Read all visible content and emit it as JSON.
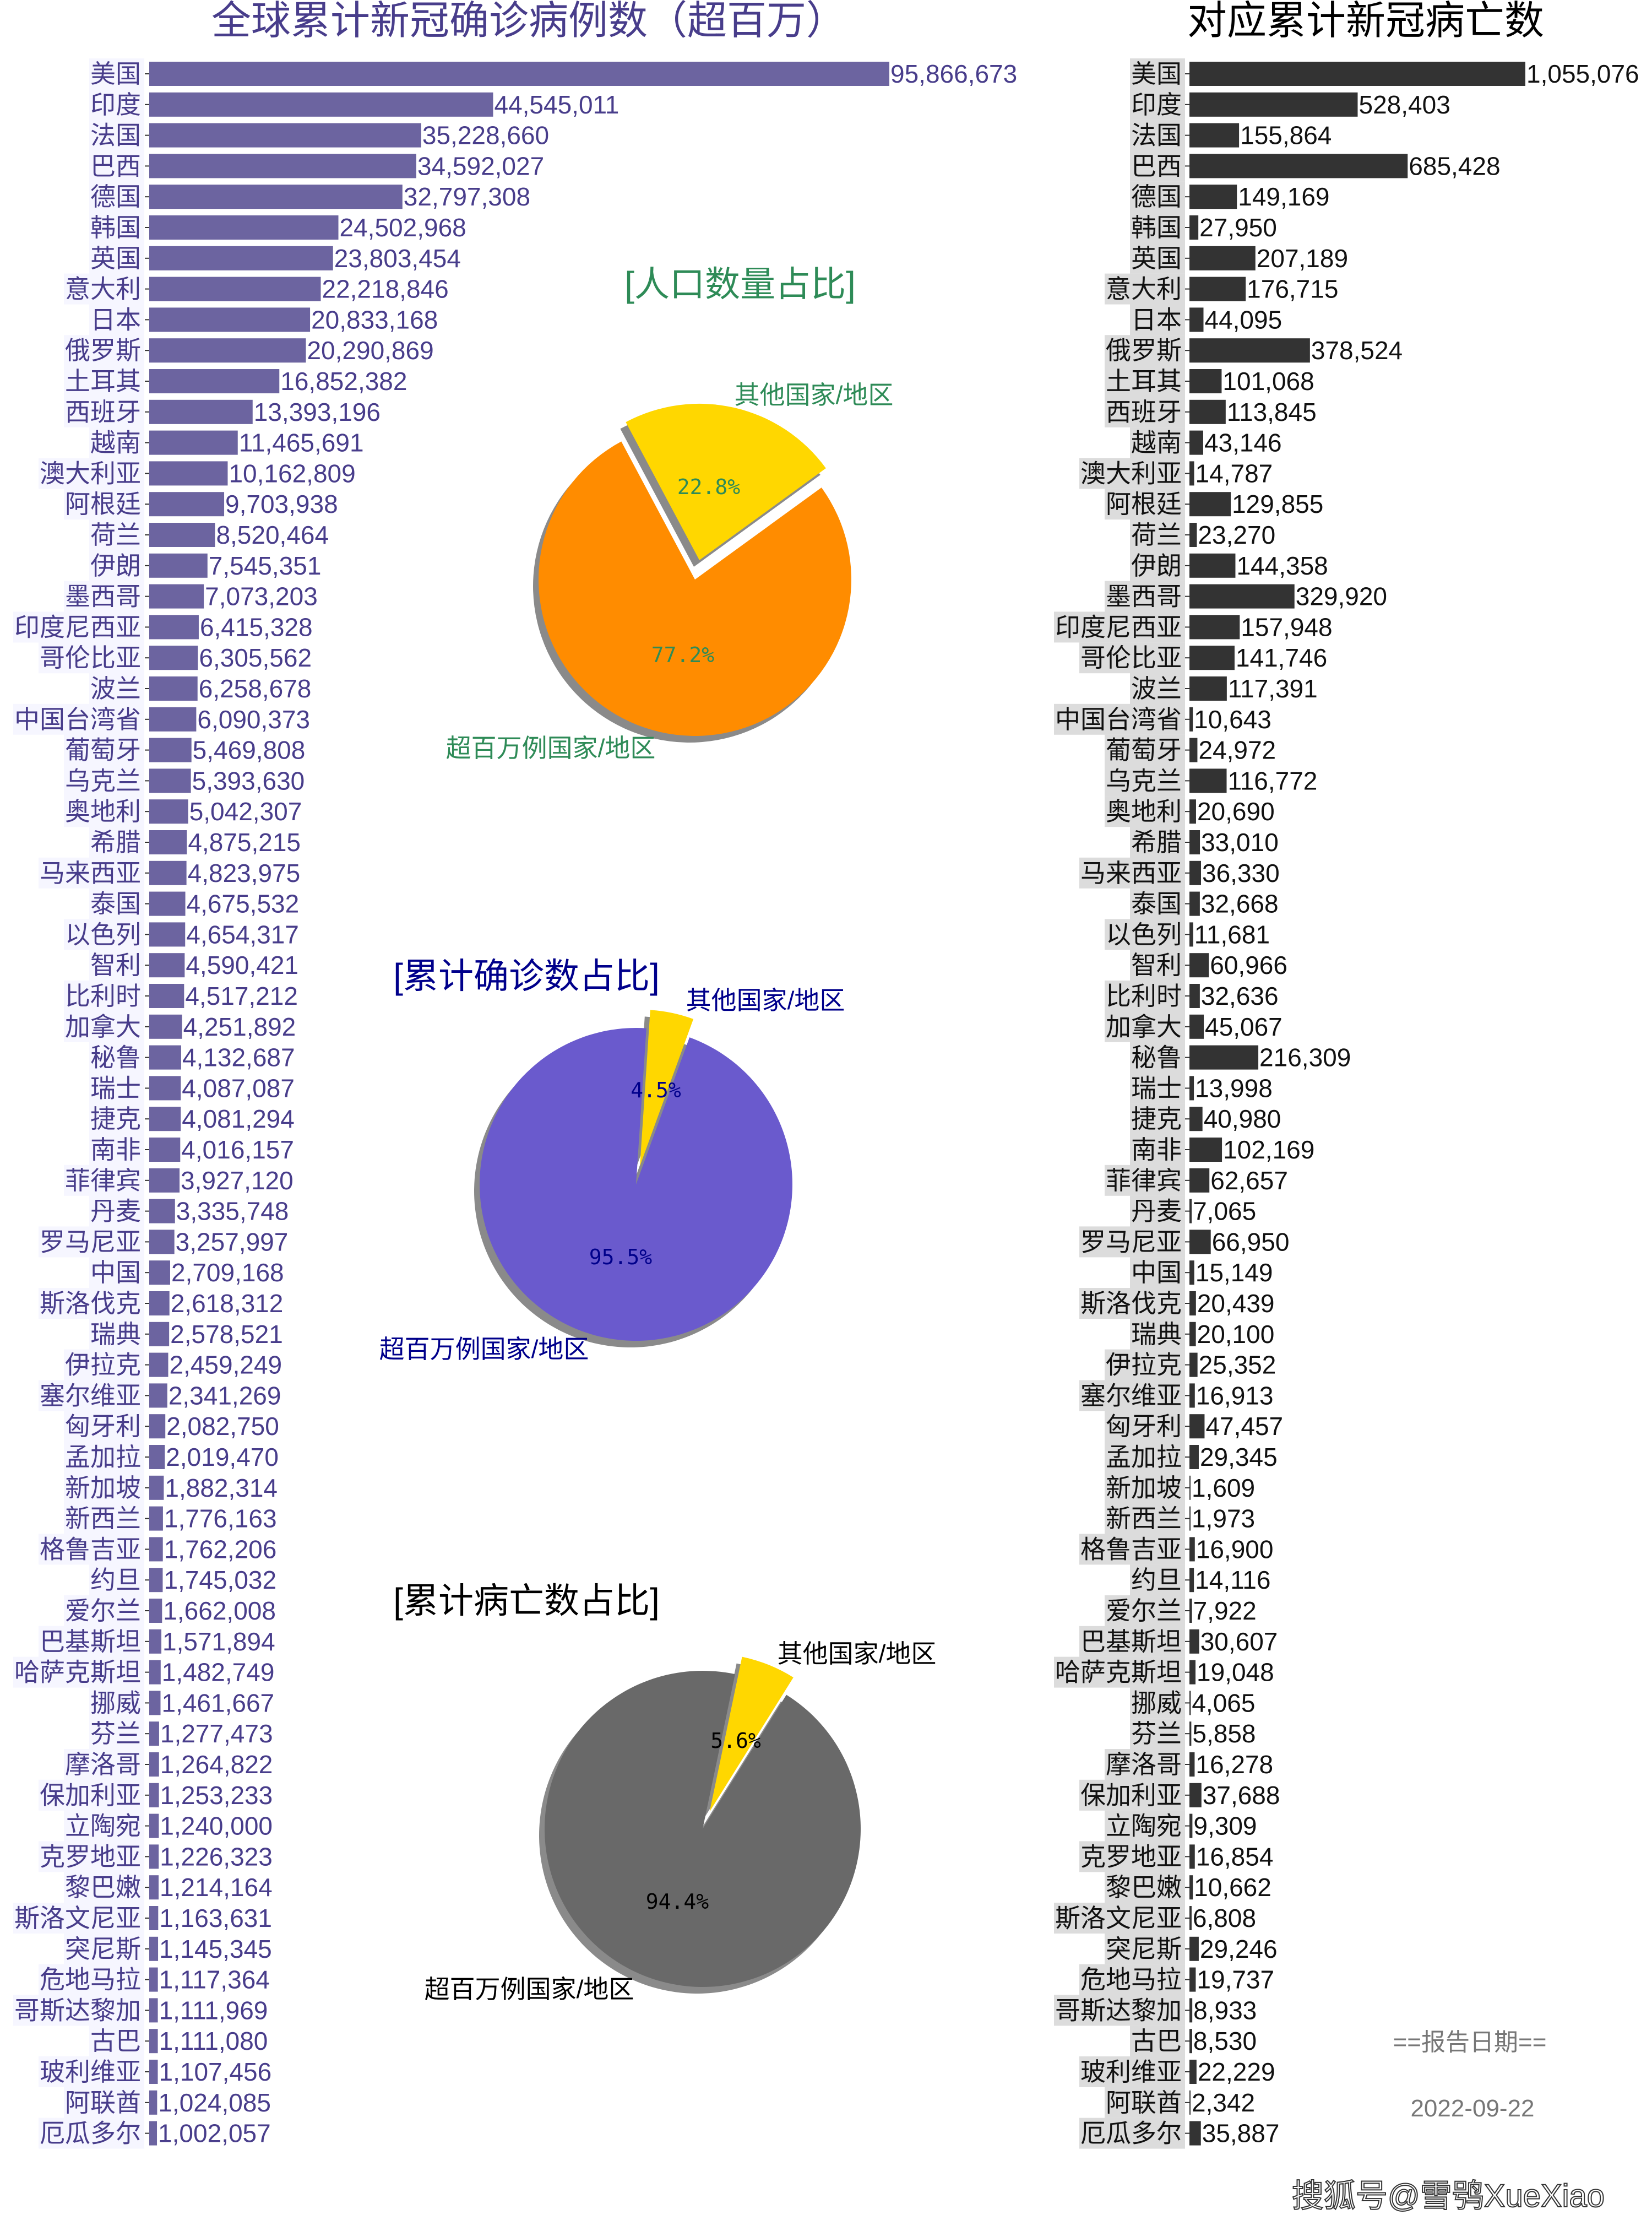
{
  "colors": {
    "cases_title": "#483D8B",
    "cases_bar": "#6C64A0",
    "cases_text": "#483D8B",
    "cases_label_bg": "#F6F6FF",
    "deaths_bar": "#333333",
    "deaths_text": "#111111",
    "deaths_label_bg": "#DCDCDC",
    "pie_other": "#FFD700",
    "pie_shadow": "#8A8A8A",
    "report_text": "#777777"
  },
  "chart_data": [
    {
      "type": "bar",
      "orientation": "horizontal",
      "title": "全球累计新冠确诊病例数（超百万）",
      "categories": [
        "美国",
        "印度",
        "法国",
        "巴西",
        "德国",
        "韩国",
        "英国",
        "意大利",
        "日本",
        "俄罗斯",
        "土耳其",
        "西班牙",
        "越南",
        "澳大利亚",
        "阿根廷",
        "荷兰",
        "伊朗",
        "墨西哥",
        "印度尼西亚",
        "哥伦比亚",
        "波兰",
        "中国台湾省",
        "葡萄牙",
        "乌克兰",
        "奥地利",
        "希腊",
        "马来西亚",
        "泰国",
        "以色列",
        "智利",
        "比利时",
        "加拿大",
        "秘鲁",
        "瑞士",
        "捷克",
        "南非",
        "菲律宾",
        "丹麦",
        "罗马尼亚",
        "中国",
        "斯洛伐克",
        "瑞典",
        "伊拉克",
        "塞尔维亚",
        "匈牙利",
        "孟加拉",
        "新加坡",
        "新西兰",
        "格鲁吉亚",
        "约旦",
        "爱尔兰",
        "巴基斯坦",
        "哈萨克斯坦",
        "挪威",
        "芬兰",
        "摩洛哥",
        "保加利亚",
        "立陶宛",
        "克罗地亚",
        "黎巴嫩",
        "斯洛文尼亚",
        "突尼斯",
        "危地马拉",
        "哥斯达黎加",
        "古巴",
        "玻利维亚",
        "阿联酋",
        "厄瓜多尔"
      ],
      "values": [
        95866673,
        44545011,
        35228660,
        34592027,
        32797308,
        24502968,
        23803454,
        22218846,
        20833168,
        20290869,
        16852382,
        13393196,
        11465691,
        10162809,
        9703938,
        8520464,
        7545351,
        7073203,
        6415328,
        6305562,
        6258678,
        6090373,
        5469808,
        5393630,
        5042307,
        4875215,
        4823975,
        4675532,
        4654317,
        4590421,
        4517212,
        4251892,
        4132687,
        4087087,
        4081294,
        4016157,
        3927120,
        3335748,
        3257997,
        2709168,
        2618312,
        2578521,
        2459249,
        2341269,
        2082750,
        2019470,
        1882314,
        1776163,
        1762206,
        1745032,
        1662008,
        1571894,
        1482749,
        1461667,
        1277473,
        1264822,
        1253233,
        1240000,
        1226323,
        1214164,
        1163631,
        1145345,
        1117364,
        1111969,
        1111080,
        1107456,
        1024085,
        1002057
      ],
      "data_labels": true,
      "grid": false
    },
    {
      "type": "bar",
      "orientation": "horizontal",
      "title": "对应累计新冠病亡数",
      "categories": [
        "美国",
        "印度",
        "法国",
        "巴西",
        "德国",
        "韩国",
        "英国",
        "意大利",
        "日本",
        "俄罗斯",
        "土耳其",
        "西班牙",
        "越南",
        "澳大利亚",
        "阿根廷",
        "荷兰",
        "伊朗",
        "墨西哥",
        "印度尼西亚",
        "哥伦比亚",
        "波兰",
        "中国台湾省",
        "葡萄牙",
        "乌克兰",
        "奥地利",
        "希腊",
        "马来西亚",
        "泰国",
        "以色列",
        "智利",
        "比利时",
        "加拿大",
        "秘鲁",
        "瑞士",
        "捷克",
        "南非",
        "菲律宾",
        "丹麦",
        "罗马尼亚",
        "中国",
        "斯洛伐克",
        "瑞典",
        "伊拉克",
        "塞尔维亚",
        "匈牙利",
        "孟加拉",
        "新加坡",
        "新西兰",
        "格鲁吉亚",
        "约旦",
        "爱尔兰",
        "巴基斯坦",
        "哈萨克斯坦",
        "挪威",
        "芬兰",
        "摩洛哥",
        "保加利亚",
        "立陶宛",
        "克罗地亚",
        "黎巴嫩",
        "斯洛文尼亚",
        "突尼斯",
        "危地马拉",
        "哥斯达黎加",
        "古巴",
        "玻利维亚",
        "阿联酋",
        "厄瓜多尔"
      ],
      "values": [
        1055076,
        528403,
        155864,
        685428,
        149169,
        27950,
        207189,
        176715,
        44095,
        378524,
        101068,
        113845,
        43146,
        14787,
        129855,
        23270,
        144358,
        329920,
        157948,
        141746,
        117391,
        10643,
        24972,
        116772,
        20690,
        33010,
        36330,
        32668,
        11681,
        60966,
        32636,
        45067,
        216309,
        13998,
        40980,
        102169,
        62657,
        7065,
        66950,
        15149,
        20439,
        20100,
        25352,
        16913,
        47457,
        29345,
        1609,
        1973,
        16900,
        14116,
        7922,
        30607,
        19048,
        4065,
        5858,
        16278,
        37688,
        9309,
        16854,
        10662,
        6808,
        29246,
        19737,
        8933,
        8530,
        22229,
        2342,
        35887
      ],
      "data_labels": true,
      "grid": false
    },
    {
      "type": "pie",
      "title": "[人口数量占比]",
      "title_color": "#2E8B57",
      "labels": [
        "其他国家/地区",
        "超百万例国家/地区"
      ],
      "values": [
        22.8,
        77.2
      ],
      "value_labels": [
        "22.8%",
        "77.2%"
      ],
      "colors": [
        "#FFD700",
        "#FF8C00"
      ],
      "pct_color": "#2E8B57",
      "exploded": "其他国家/地区",
      "shadow": true
    },
    {
      "type": "pie",
      "title": "[累计确诊数占比]",
      "title_color": "#00008B",
      "labels": [
        "其他国家/地区",
        "超百万例国家/地区"
      ],
      "values": [
        4.5,
        95.5
      ],
      "value_labels": [
        "4.5%",
        "95.5%"
      ],
      "colors": [
        "#FFD700",
        "#6A5ACD"
      ],
      "pct_color": "#00008B",
      "exploded": "其他国家/地区",
      "shadow": true
    },
    {
      "type": "pie",
      "title": "[累计病亡数占比]",
      "title_color": "#000000",
      "labels": [
        "其他国家/地区",
        "超百万例国家/地区"
      ],
      "values": [
        5.6,
        94.4
      ],
      "value_labels": [
        "5.6%",
        "94.4%"
      ],
      "colors": [
        "#FFD700",
        "#696969"
      ],
      "pct_color": "#000000",
      "exploded": "其他国家/地区",
      "shadow": true
    }
  ],
  "report": {
    "heading": "==报告日期==",
    "date": "2022-09-22"
  },
  "watermark": "搜狐号@雪鸮XueXiao"
}
